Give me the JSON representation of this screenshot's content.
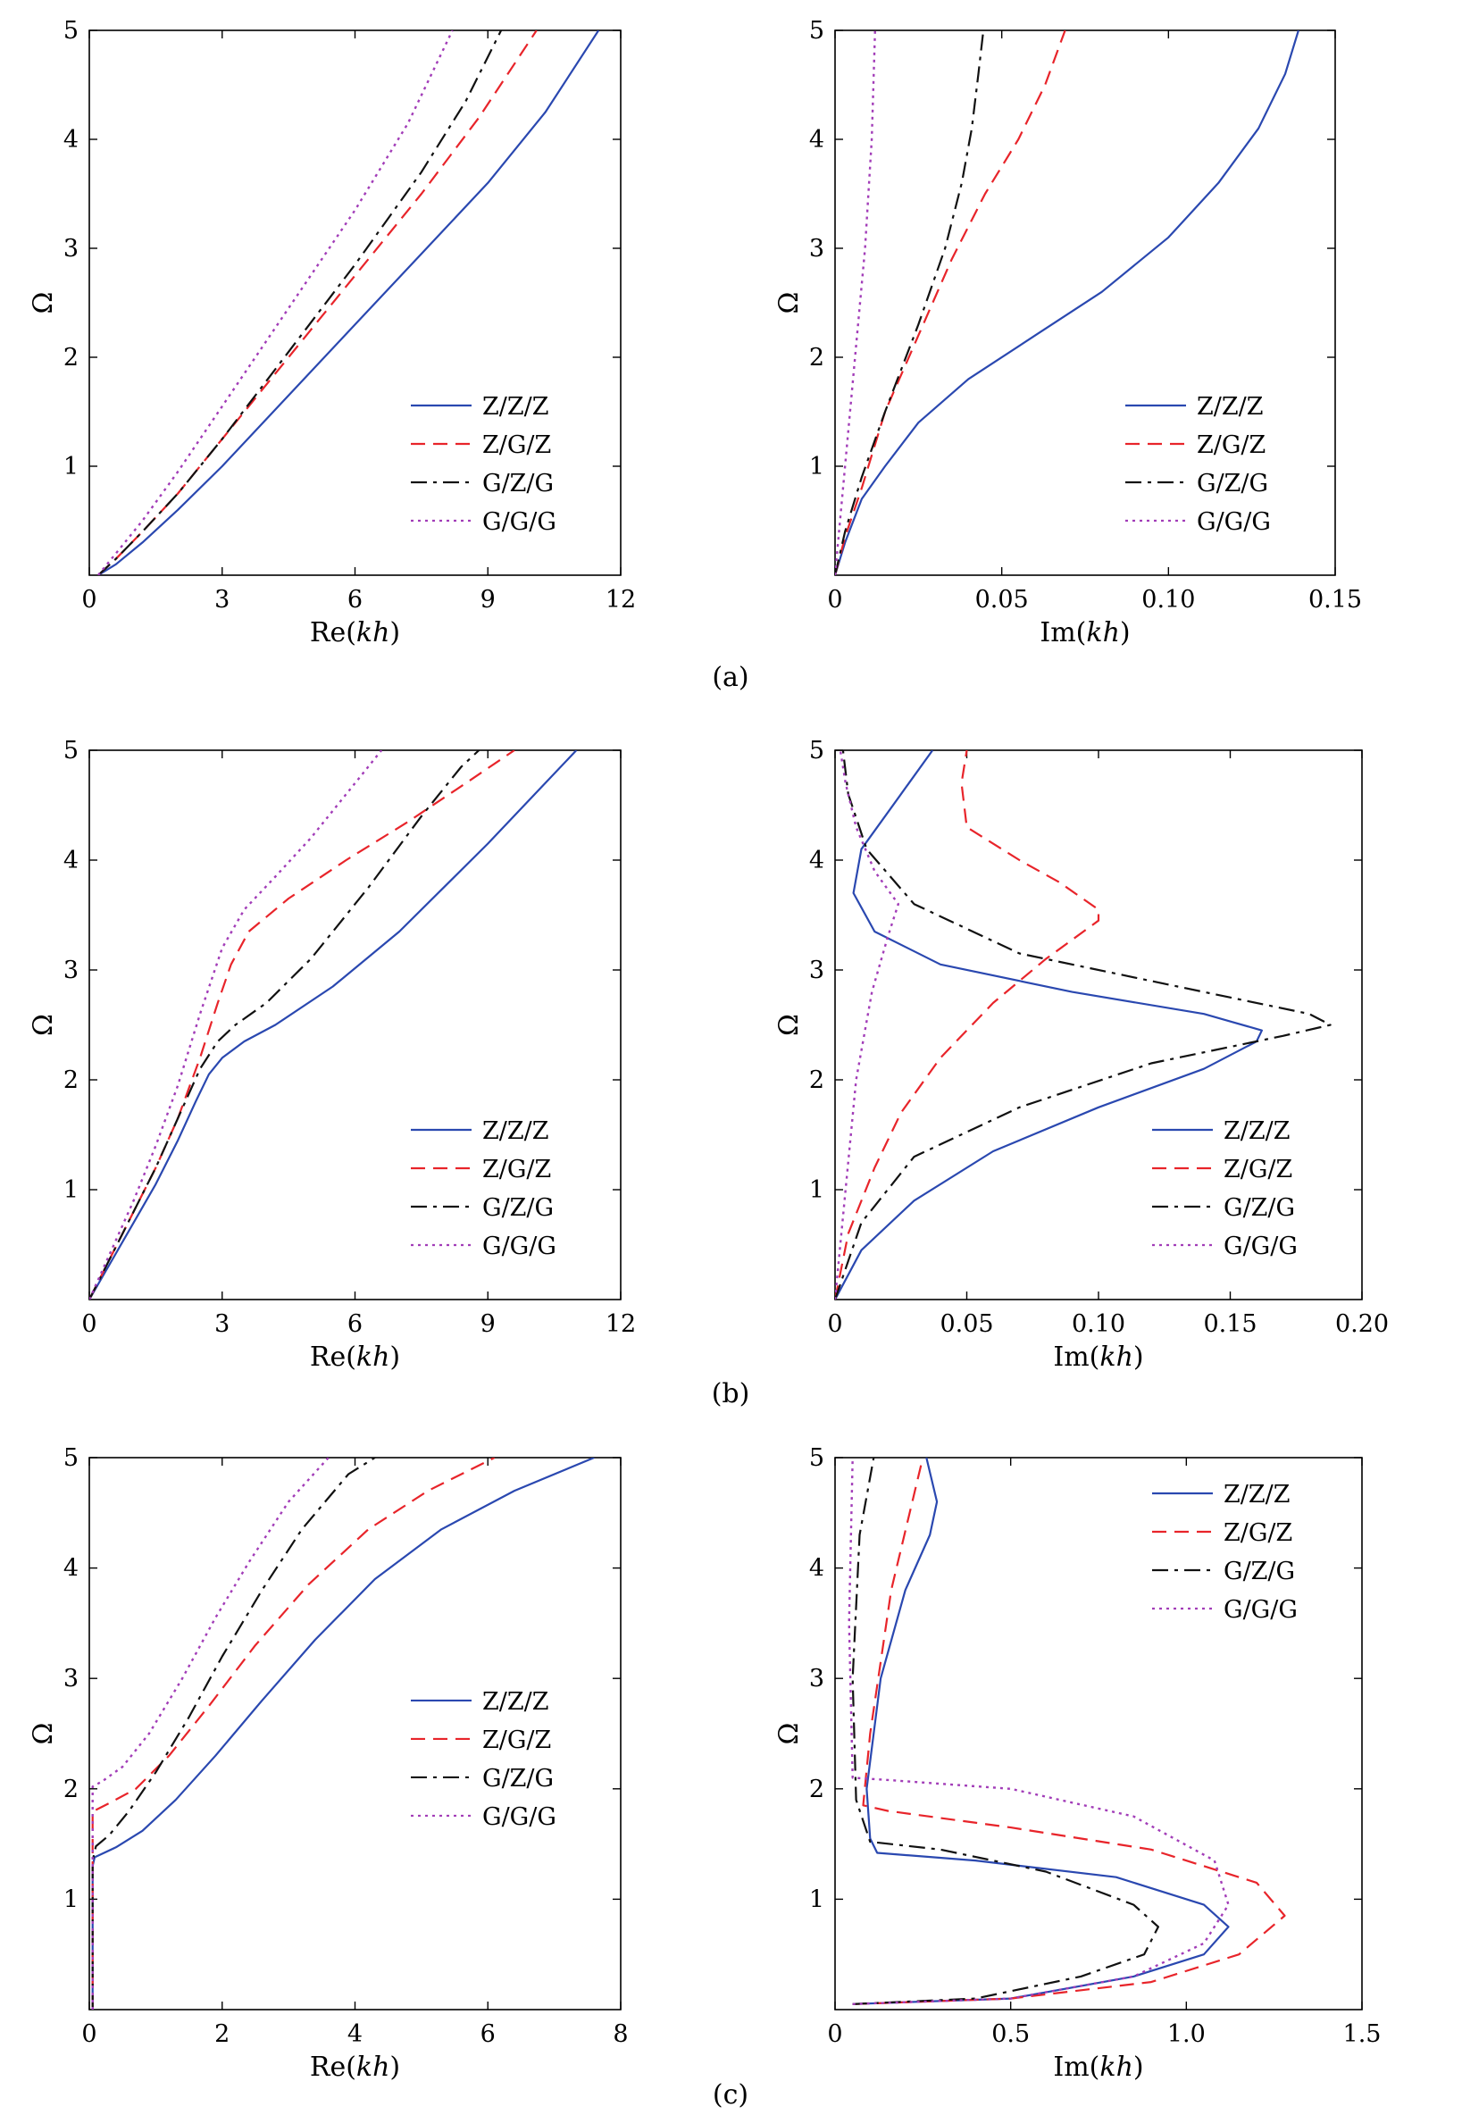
{
  "figure": {
    "panel_labels": [
      "(a)",
      "(b)",
      "(c)"
    ]
  },
  "colors": {
    "Z/Z/Z": "#2a48b0",
    "Z/G/Z": "#e8242a",
    "G/Z/G": "#111111",
    "G/G/G": "#a23db8"
  },
  "chart_data": [
    {
      "type": "line",
      "panel": "(a)",
      "side": "left",
      "xlabel": "Re(kh)",
      "ylabel": "Ω",
      "xlim": [
        0,
        12
      ],
      "ylim": [
        0,
        5
      ],
      "xticks": [
        0,
        3,
        6,
        9,
        12
      ],
      "xtick_labels": [
        "0",
        "3",
        "6",
        "9",
        "12"
      ],
      "yticks": [
        1,
        2,
        3,
        4,
        5
      ],
      "ytick_labels": [
        "1",
        "2",
        "3",
        "4",
        "5"
      ],
      "legend_position": "bottom-right",
      "series": [
        {
          "name": "Z/Z/Z",
          "style": "solid",
          "x": [
            0.2,
            0.6,
            1.2,
            2.0,
            3.0,
            4.5,
            6.0,
            7.5,
            9.0,
            10.3,
            11.5
          ],
          "y": [
            0,
            0.1,
            0.3,
            0.6,
            1.0,
            1.65,
            2.3,
            2.95,
            3.6,
            4.25,
            5.0
          ]
        },
        {
          "name": "Z/G/Z",
          "style": "dashed",
          "x": [
            0.2,
            0.6,
            1.2,
            2.0,
            3.0,
            4.5,
            6.0,
            7.5,
            8.8,
            10.1
          ],
          "y": [
            0,
            0.15,
            0.4,
            0.75,
            1.25,
            2.0,
            2.75,
            3.5,
            4.2,
            5.0
          ]
        },
        {
          "name": "G/Z/G",
          "style": "dashdot",
          "x": [
            0.2,
            0.6,
            1.2,
            2.0,
            3.0,
            4.5,
            6.0,
            7.5,
            8.5,
            9.3
          ],
          "y": [
            0,
            0.15,
            0.4,
            0.75,
            1.25,
            2.05,
            2.85,
            3.7,
            4.35,
            5.0
          ]
        },
        {
          "name": "G/G/G",
          "style": "dotted",
          "x": [
            0.2,
            0.6,
            1.2,
            2.0,
            3.0,
            4.5,
            6.0,
            7.2,
            8.2
          ],
          "y": [
            0,
            0.2,
            0.5,
            0.95,
            1.55,
            2.45,
            3.35,
            4.15,
            5.0
          ]
        }
      ]
    },
    {
      "type": "line",
      "panel": "(a)",
      "side": "right",
      "xlabel": "Im(kh)",
      "ylabel": "Ω",
      "xlim": [
        0,
        0.15
      ],
      "ylim": [
        0,
        5
      ],
      "xticks": [
        0,
        0.05,
        0.1,
        0.15
      ],
      "xtick_labels": [
        "0",
        "0.05",
        "0.10",
        "0.15"
      ],
      "yticks": [
        1,
        2,
        3,
        4,
        5
      ],
      "ytick_labels": [
        "1",
        "2",
        "3",
        "4",
        "5"
      ],
      "legend_position": "bottom-right",
      "series": [
        {
          "name": "Z/Z/Z",
          "style": "solid",
          "x": [
            0.0,
            0.003,
            0.008,
            0.015,
            0.025,
            0.04,
            0.06,
            0.08,
            0.1,
            0.115,
            0.127,
            0.135,
            0.139
          ],
          "y": [
            0,
            0.3,
            0.7,
            1.0,
            1.4,
            1.8,
            2.2,
            2.6,
            3.1,
            3.6,
            4.1,
            4.6,
            5.0
          ]
        },
        {
          "name": "Z/G/Z",
          "style": "dashed",
          "x": [
            0.0,
            0.003,
            0.008,
            0.015,
            0.025,
            0.035,
            0.045,
            0.055,
            0.063,
            0.069
          ],
          "y": [
            0,
            0.35,
            0.8,
            1.5,
            2.2,
            2.9,
            3.5,
            4.0,
            4.5,
            5.0
          ]
        },
        {
          "name": "G/Z/G",
          "style": "dashdot",
          "x": [
            0.0,
            0.003,
            0.008,
            0.015,
            0.025,
            0.033,
            0.038,
            0.041,
            0.043,
            0.0445
          ],
          "y": [
            0,
            0.4,
            0.9,
            1.5,
            2.3,
            3.0,
            3.6,
            4.1,
            4.6,
            5.0
          ]
        },
        {
          "name": "G/G/G",
          "style": "dotted",
          "x": [
            0.0,
            0.003,
            0.006,
            0.009,
            0.011,
            0.012
          ],
          "y": [
            0,
            1.0,
            2.0,
            3.0,
            4.0,
            5.0
          ]
        }
      ]
    },
    {
      "type": "line",
      "panel": "(b)",
      "side": "left",
      "xlabel": "Re(kh)",
      "ylabel": "Ω",
      "xlim": [
        0,
        12
      ],
      "ylim": [
        0,
        5
      ],
      "xticks": [
        0,
        3,
        6,
        9,
        12
      ],
      "xtick_labels": [
        "0",
        "3",
        "6",
        "9",
        "12"
      ],
      "yticks": [
        1,
        2,
        3,
        4,
        5
      ],
      "ytick_labels": [
        "1",
        "2",
        "3",
        "4",
        "5"
      ],
      "legend_position": "bottom-right",
      "series": [
        {
          "name": "Z/Z/Z",
          "style": "solid",
          "x": [
            0.0,
            0.5,
            1.0,
            1.5,
            2.0,
            2.4,
            2.7,
            3.0,
            3.5,
            4.2,
            5.5,
            7.0,
            9.0,
            11.0
          ],
          "y": [
            0,
            0.35,
            0.7,
            1.05,
            1.45,
            1.8,
            2.05,
            2.2,
            2.35,
            2.5,
            2.85,
            3.35,
            4.15,
            5.0
          ]
        },
        {
          "name": "Z/G/Z",
          "style": "dashed",
          "x": [
            0.0,
            0.5,
            1.0,
            1.5,
            2.0,
            2.5,
            2.9,
            3.2,
            3.6,
            4.5,
            5.8,
            7.2,
            8.5,
            9.6
          ],
          "y": [
            0,
            0.4,
            0.8,
            1.2,
            1.65,
            2.2,
            2.7,
            3.05,
            3.35,
            3.65,
            4.0,
            4.35,
            4.7,
            5.0
          ]
        },
        {
          "name": "G/Z/G",
          "style": "dashdot",
          "x": [
            0.0,
            0.5,
            1.0,
            1.5,
            2.0,
            2.5,
            2.9,
            3.3,
            4.0,
            5.0,
            6.3,
            7.5,
            8.4,
            8.8
          ],
          "y": [
            0,
            0.4,
            0.8,
            1.2,
            1.65,
            2.1,
            2.35,
            2.5,
            2.7,
            3.1,
            3.75,
            4.4,
            4.85,
            5.0
          ]
        },
        {
          "name": "G/G/G",
          "style": "dotted",
          "x": [
            0.0,
            0.5,
            1.0,
            1.5,
            2.0,
            2.5,
            3.0,
            3.5,
            4.2,
            5.0,
            5.8,
            6.6
          ],
          "y": [
            0,
            0.45,
            0.9,
            1.4,
            1.95,
            2.6,
            3.2,
            3.55,
            3.85,
            4.2,
            4.6,
            5.0
          ]
        }
      ]
    },
    {
      "type": "line",
      "panel": "(b)",
      "side": "right",
      "xlabel": "Im(kh)",
      "ylabel": "Ω",
      "xlim": [
        0,
        0.2
      ],
      "ylim": [
        0,
        5
      ],
      "xticks": [
        0,
        0.05,
        0.1,
        0.15,
        0.2
      ],
      "xtick_labels": [
        "0",
        "0.05",
        "0.10",
        "0.15",
        "0.20"
      ],
      "yticks": [
        1,
        2,
        3,
        4,
        5
      ],
      "ytick_labels": [
        "1",
        "2",
        "3",
        "4",
        "5"
      ],
      "legend_position": "bottom-right",
      "series": [
        {
          "name": "Z/Z/Z",
          "style": "solid",
          "x": [
            0.0,
            0.01,
            0.03,
            0.06,
            0.1,
            0.14,
            0.16,
            0.162,
            0.14,
            0.09,
            0.04,
            0.015,
            0.007,
            0.01,
            0.025,
            0.037
          ],
          "y": [
            0,
            0.45,
            0.9,
            1.35,
            1.75,
            2.1,
            2.35,
            2.45,
            2.6,
            2.8,
            3.05,
            3.35,
            3.7,
            4.1,
            4.6,
            5.0
          ]
        },
        {
          "name": "Z/G/Z",
          "style": "dashed",
          "x": [
            0.0,
            0.005,
            0.015,
            0.025,
            0.04,
            0.06,
            0.08,
            0.1,
            0.1,
            0.085,
            0.07,
            0.05,
            0.048,
            0.05
          ],
          "y": [
            0,
            0.6,
            1.2,
            1.7,
            2.2,
            2.7,
            3.1,
            3.45,
            3.55,
            3.8,
            4.0,
            4.3,
            4.7,
            5.0
          ]
        },
        {
          "name": "G/Z/G",
          "style": "dashdot",
          "x": [
            0.0,
            0.01,
            0.03,
            0.07,
            0.12,
            0.17,
            0.188,
            0.18,
            0.13,
            0.07,
            0.03,
            0.012,
            0.005,
            0.003
          ],
          "y": [
            0,
            0.7,
            1.3,
            1.75,
            2.15,
            2.4,
            2.5,
            2.6,
            2.85,
            3.15,
            3.6,
            4.1,
            4.6,
            5.0
          ]
        },
        {
          "name": "G/G/G",
          "style": "dotted",
          "x": [
            0.0,
            0.004,
            0.008,
            0.014,
            0.02,
            0.024,
            0.015,
            0.008,
            0.004,
            0.002
          ],
          "y": [
            0,
            1.0,
            2.0,
            2.8,
            3.3,
            3.6,
            3.9,
            4.3,
            4.7,
            5.0
          ]
        }
      ]
    },
    {
      "type": "line",
      "panel": "(c)",
      "side": "left",
      "xlabel": "Re(kh)",
      "ylabel": "Ω",
      "xlim": [
        0,
        8
      ],
      "ylim": [
        0,
        5
      ],
      "xticks": [
        0,
        2,
        4,
        6,
        8
      ],
      "xtick_labels": [
        "0",
        "2",
        "4",
        "6",
        "8"
      ],
      "yticks": [
        1,
        2,
        3,
        4,
        5
      ],
      "ytick_labels": [
        "1",
        "2",
        "3",
        "4",
        "5"
      ],
      "legend_position": "middle-right",
      "series": [
        {
          "name": "Z/Z/Z",
          "style": "solid",
          "x": [
            0.05,
            0.05,
            0.08,
            0.15,
            0.4,
            0.8,
            1.3,
            1.9,
            2.6,
            3.4,
            4.3,
            5.3,
            6.4,
            7.6
          ],
          "y": [
            0,
            1.3,
            1.38,
            1.4,
            1.47,
            1.62,
            1.9,
            2.3,
            2.8,
            3.35,
            3.9,
            4.35,
            4.7,
            5.0
          ]
        },
        {
          "name": "Z/G/Z",
          "style": "dashed",
          "x": [
            0.05,
            0.05,
            0.07,
            0.3,
            0.7,
            1.2,
            1.8,
            2.5,
            3.3,
            4.2,
            5.1,
            6.1
          ],
          "y": [
            0,
            1.75,
            1.8,
            1.87,
            2.0,
            2.3,
            2.75,
            3.3,
            3.85,
            4.35,
            4.7,
            5.0
          ]
        },
        {
          "name": "G/Z/G",
          "style": "dashdot",
          "x": [
            0.05,
            0.05,
            0.1,
            0.3,
            0.6,
            1.0,
            1.5,
            2.0,
            2.6,
            3.2,
            3.9,
            4.3
          ],
          "y": [
            0,
            1.35,
            1.48,
            1.58,
            1.8,
            2.15,
            2.65,
            3.2,
            3.8,
            4.35,
            4.85,
            5.0
          ]
        },
        {
          "name": "G/G/G",
          "style": "dotted",
          "x": [
            0.05,
            0.05,
            0.2,
            0.5,
            0.9,
            1.4,
            1.9,
            2.4,
            3.0,
            3.6
          ],
          "y": [
            0,
            2.02,
            2.07,
            2.2,
            2.5,
            3.0,
            3.55,
            4.05,
            4.6,
            5.0
          ]
        }
      ]
    },
    {
      "type": "line",
      "panel": "(c)",
      "side": "right",
      "xlabel": "Im(kh)",
      "ylabel": "Ω",
      "xlim": [
        0,
        1.5
      ],
      "ylim": [
        0,
        5
      ],
      "xticks": [
        0,
        0.5,
        1.0,
        1.5
      ],
      "xtick_labels": [
        "0",
        "0.5",
        "1.0",
        "1.5"
      ],
      "yticks": [
        1,
        2,
        3,
        4,
        5
      ],
      "ytick_labels": [
        "1",
        "2",
        "3",
        "4",
        "5"
      ],
      "legend_position": "top-right",
      "series": [
        {
          "name": "Z/Z/Z",
          "style": "solid",
          "x": [
            0.05,
            0.5,
            0.85,
            1.05,
            1.12,
            1.05,
            0.8,
            0.4,
            0.12,
            0.1,
            0.09,
            0.13,
            0.2,
            0.27,
            0.29,
            0.26
          ],
          "y": [
            0.05,
            0.1,
            0.3,
            0.5,
            0.75,
            0.95,
            1.2,
            1.35,
            1.42,
            1.55,
            2.0,
            3.0,
            3.8,
            4.3,
            4.6,
            5.0
          ]
        },
        {
          "name": "Z/G/Z",
          "style": "dashed",
          "x": [
            0.05,
            0.5,
            0.9,
            1.15,
            1.28,
            1.2,
            0.9,
            0.5,
            0.15,
            0.08,
            0.1,
            0.16,
            0.22,
            0.25
          ],
          "y": [
            0.05,
            0.1,
            0.25,
            0.5,
            0.85,
            1.15,
            1.45,
            1.65,
            1.8,
            1.85,
            2.5,
            3.8,
            4.6,
            5.0
          ]
        },
        {
          "name": "G/Z/G",
          "style": "dashdot",
          "x": [
            0.05,
            0.4,
            0.7,
            0.88,
            0.92,
            0.85,
            0.6,
            0.3,
            0.1,
            0.06,
            0.05,
            0.07,
            0.11
          ],
          "y": [
            0.05,
            0.1,
            0.3,
            0.5,
            0.75,
            0.95,
            1.25,
            1.45,
            1.52,
            1.9,
            3.0,
            4.3,
            5.0
          ]
        },
        {
          "name": "G/G/G",
          "style": "dotted",
          "x": [
            0.05,
            0.5,
            0.85,
            1.05,
            1.12,
            1.08,
            0.85,
            0.5,
            0.15,
            0.05,
            0.04,
            0.05
          ],
          "y": [
            0.05,
            0.1,
            0.3,
            0.6,
            0.95,
            1.35,
            1.75,
            2.0,
            2.08,
            2.1,
            3.5,
            5.0
          ]
        }
      ]
    }
  ]
}
